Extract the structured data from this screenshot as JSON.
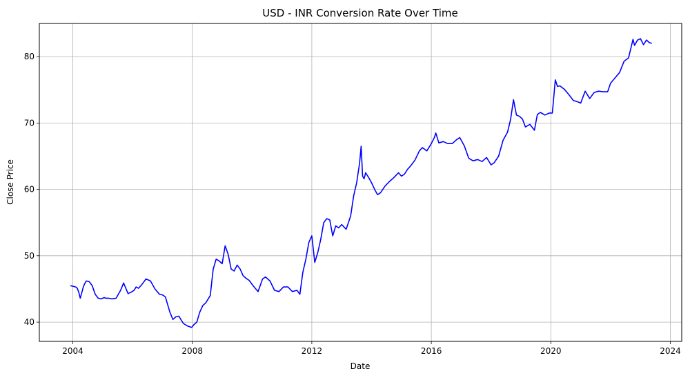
{
  "chart_data": {
    "type": "line",
    "title": "USD - INR Conversion Rate Over Time",
    "xlabel": "Date",
    "ylabel": "Close Price",
    "xlim": [
      2002.88,
      2024.38
    ],
    "ylim": [
      37.1,
      85.0
    ],
    "xticks": [
      2004,
      2008,
      2012,
      2016,
      2020,
      2024
    ],
    "xtick_labels": [
      "2004",
      "2008",
      "2012",
      "2016",
      "2020",
      "2024"
    ],
    "yticks": [
      40,
      50,
      60,
      70,
      80
    ],
    "ytick_labels": [
      "40",
      "50",
      "60",
      "70",
      "80"
    ],
    "grid": true,
    "line_color": "#0000ff",
    "grid_color": "#b0b0b0",
    "series": [
      {
        "name": "Close",
        "x": [
          2003.92,
          2004.1,
          2004.15,
          2004.2,
          2004.25,
          2004.3,
          2004.35,
          2004.4,
          2004.45,
          2004.55,
          2004.65,
          2004.75,
          2004.85,
          2004.95,
          2005.05,
          2005.1,
          2005.2,
          2005.3,
          2005.45,
          2005.6,
          2005.7,
          2005.85,
          2005.95,
          2006.05,
          2006.12,
          2006.2,
          2006.3,
          2006.45,
          2006.6,
          2006.75,
          2006.9,
          2007.0,
          2007.1,
          2007.25,
          2007.35,
          2007.45,
          2007.55,
          2007.7,
          2007.85,
          2007.98,
          2008.05,
          2008.15,
          2008.25,
          2008.35,
          2008.45,
          2008.6,
          2008.7,
          2008.8,
          2008.9,
          2009.0,
          2009.1,
          2009.2,
          2009.3,
          2009.4,
          2009.5,
          2009.6,
          2009.7,
          2009.8,
          2009.9,
          2010.05,
          2010.2,
          2010.35,
          2010.45,
          2010.6,
          2010.75,
          2010.9,
          2011.05,
          2011.2,
          2011.35,
          2011.5,
          2011.6,
          2011.7,
          2011.8,
          2011.9,
          2012.0,
          2012.1,
          2012.2,
          2012.3,
          2012.4,
          2012.5,
          2012.6,
          2012.7,
          2012.8,
          2012.9,
          2013.0,
          2013.15,
          2013.3,
          2013.4,
          2013.5,
          2013.6,
          2013.65,
          2013.7,
          2013.75,
          2013.8,
          2013.9,
          2014.0,
          2014.1,
          2014.2,
          2014.3,
          2014.45,
          2014.6,
          2014.75,
          2014.9,
          2015.0,
          2015.1,
          2015.2,
          2015.3,
          2015.45,
          2015.6,
          2015.7,
          2015.85,
          2016.0,
          2016.1,
          2016.15,
          2016.25,
          2016.4,
          2016.55,
          2016.7,
          2016.85,
          2016.95,
          2017.1,
          2017.25,
          2017.4,
          2017.55,
          2017.7,
          2017.85,
          2018.0,
          2018.1,
          2018.25,
          2018.4,
          2018.55,
          2018.65,
          2018.75,
          2018.85,
          2018.95,
          2019.05,
          2019.15,
          2019.3,
          2019.45,
          2019.55,
          2019.65,
          2019.8,
          2019.95,
          2020.05,
          2020.15,
          2020.22,
          2020.3,
          2020.45,
          2020.6,
          2020.75,
          2020.9,
          2021.0,
          2021.15,
          2021.3,
          2021.45,
          2021.6,
          2021.75,
          2021.9,
          2022.0,
          2022.15,
          2022.3,
          2022.45,
          2022.6,
          2022.75,
          2022.8,
          2022.9,
          2023.0,
          2023.1,
          2023.2,
          2023.3,
          2023.38
        ],
        "values": [
          45.5,
          45.3,
          45.1,
          44.5,
          43.6,
          44.4,
          45.3,
          45.8,
          46.2,
          46.1,
          45.5,
          44.2,
          43.6,
          43.5,
          43.7,
          43.6,
          43.6,
          43.5,
          43.6,
          44.8,
          45.9,
          44.3,
          44.5,
          44.8,
          45.3,
          45.1,
          45.6,
          46.5,
          46.2,
          45.0,
          44.2,
          44.1,
          43.8,
          41.5,
          40.4,
          40.8,
          40.9,
          39.8,
          39.4,
          39.2,
          39.6,
          40.0,
          41.5,
          42.5,
          42.9,
          44.0,
          48.0,
          49.5,
          49.2,
          48.8,
          51.5,
          50.2,
          48.0,
          47.7,
          48.6,
          48.0,
          47.0,
          46.6,
          46.3,
          45.4,
          44.6,
          46.5,
          46.8,
          46.2,
          44.8,
          44.6,
          45.3,
          45.3,
          44.6,
          44.8,
          44.2,
          47.5,
          49.5,
          52.0,
          53.0,
          49.0,
          50.5,
          52.5,
          55.0,
          55.6,
          55.4,
          53.0,
          54.5,
          54.2,
          54.7,
          54.0,
          56.0,
          59.0,
          61.0,
          64.0,
          66.5,
          62.0,
          61.6,
          62.5,
          61.8,
          61.0,
          60.0,
          59.2,
          59.5,
          60.5,
          61.2,
          61.8,
          62.5,
          62.0,
          62.3,
          63.0,
          63.5,
          64.4,
          65.8,
          66.3,
          65.8,
          66.9,
          67.8,
          68.5,
          67.0,
          67.2,
          66.9,
          66.9,
          67.5,
          67.8,
          66.6,
          64.7,
          64.3,
          64.5,
          64.2,
          64.8,
          63.7,
          64.0,
          65.0,
          67.4,
          68.6,
          70.5,
          73.5,
          71.2,
          71.0,
          70.6,
          69.4,
          69.8,
          68.9,
          71.3,
          71.6,
          71.2,
          71.5,
          71.5,
          76.5,
          75.5,
          75.6,
          75.1,
          74.3,
          73.4,
          73.2,
          73.0,
          74.8,
          73.7,
          74.6,
          74.8,
          74.7,
          74.7,
          76.0,
          76.8,
          77.6,
          79.3,
          79.8,
          82.6,
          81.7,
          82.5,
          82.7,
          81.8,
          82.5,
          82.1,
          82.0
        ]
      }
    ]
  }
}
